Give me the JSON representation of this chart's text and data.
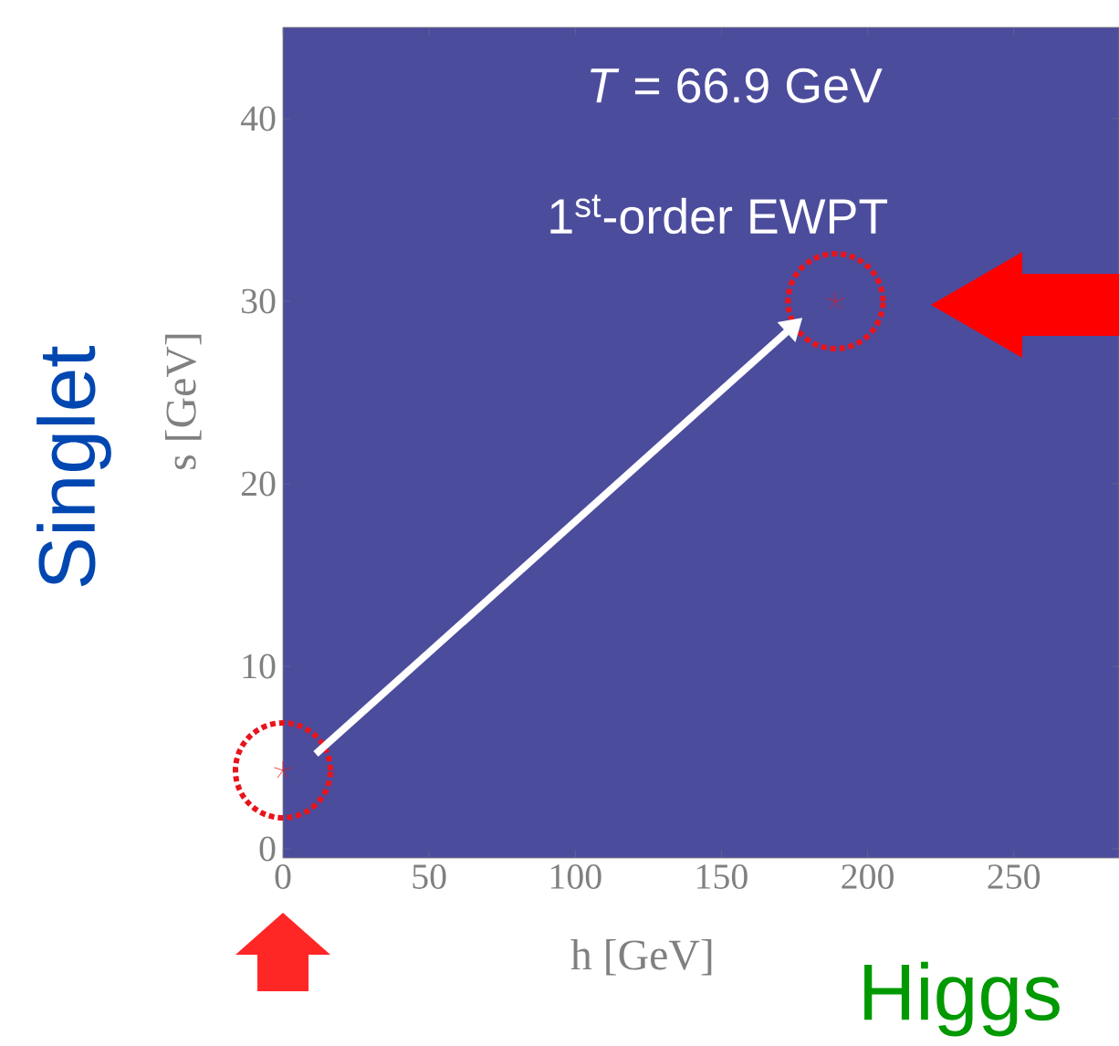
{
  "chart_data": {
    "type": "scatter",
    "xlabel": "h [GeV]",
    "ylabel": "s [GeV]",
    "xlim": [
      0,
      286
    ],
    "ylim": [
      -0.5,
      45
    ],
    "xticks": [
      0,
      50,
      100,
      150,
      200,
      250
    ],
    "yticks": [
      0,
      10,
      20,
      30,
      40
    ],
    "marker": "star",
    "series": [
      {
        "color": "#e8141c",
        "x": [
          0,
          189
        ],
        "values": [
          4.3,
          30
        ]
      }
    ],
    "annotations": [
      "*T* = 66.9 GeV",
      "1$^{st}$-order EWPT",
      "Singlet",
      "Higgs"
    ]
  }
}
